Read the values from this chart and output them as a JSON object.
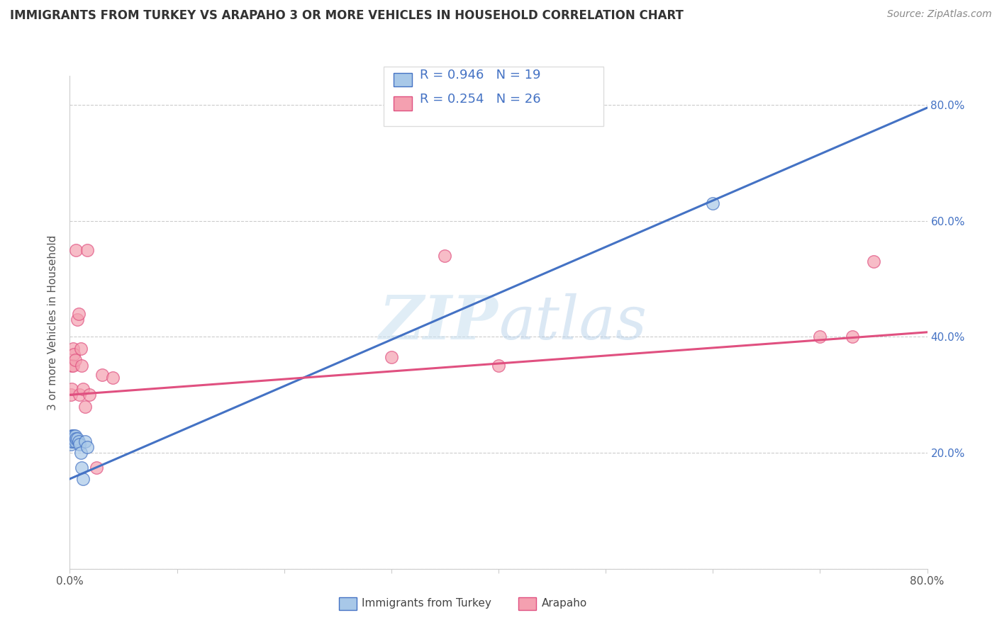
{
  "title": "IMMIGRANTS FROM TURKEY VS ARAPAHO 3 OR MORE VEHICLES IN HOUSEHOLD CORRELATION CHART",
  "source": "Source: ZipAtlas.com",
  "ylabel": "3 or more Vehicles in Household",
  "xlim": [
    0.0,
    0.8
  ],
  "ylim": [
    0.0,
    0.85
  ],
  "xticks": [
    0.0,
    0.1,
    0.2,
    0.3,
    0.4,
    0.5,
    0.6,
    0.7,
    0.8
  ],
  "xticklabels": [
    "0.0%",
    "",
    "",
    "",
    "",
    "",
    "",
    "",
    "80.0%"
  ],
  "yticks": [
    0.0,
    0.2,
    0.4,
    0.6,
    0.8
  ],
  "yticklabels_right": [
    "",
    "20.0%",
    "40.0%",
    "60.0%",
    "80.0%"
  ],
  "legend_label1": "Immigrants from Turkey",
  "legend_label2": "Arapaho",
  "R1": 0.946,
  "N1": 19,
  "R2": 0.254,
  "N2": 26,
  "color_blue": "#a8c8e8",
  "color_pink": "#f4a0b0",
  "color_blue_line": "#4472c4",
  "color_pink_line": "#e05080",
  "watermark_zip": "ZIP",
  "watermark_atlas": "atlas",
  "blue_scatter_x": [
    0.001,
    0.002,
    0.002,
    0.003,
    0.003,
    0.004,
    0.004,
    0.005,
    0.005,
    0.006,
    0.007,
    0.008,
    0.009,
    0.01,
    0.011,
    0.012,
    0.014,
    0.016,
    0.6
  ],
  "blue_scatter_y": [
    0.215,
    0.22,
    0.23,
    0.22,
    0.23,
    0.225,
    0.23,
    0.22,
    0.23,
    0.225,
    0.225,
    0.22,
    0.215,
    0.2,
    0.175,
    0.155,
    0.22,
    0.21,
    0.63
  ],
  "pink_scatter_x": [
    0.001,
    0.002,
    0.002,
    0.003,
    0.003,
    0.004,
    0.005,
    0.006,
    0.007,
    0.008,
    0.009,
    0.01,
    0.011,
    0.012,
    0.014,
    0.016,
    0.018,
    0.025,
    0.03,
    0.04,
    0.3,
    0.35,
    0.4,
    0.7,
    0.73,
    0.75
  ],
  "pink_scatter_y": [
    0.3,
    0.31,
    0.35,
    0.35,
    0.38,
    0.37,
    0.36,
    0.55,
    0.43,
    0.44,
    0.3,
    0.38,
    0.35,
    0.31,
    0.28,
    0.55,
    0.3,
    0.175,
    0.335,
    0.33,
    0.365,
    0.54,
    0.35,
    0.4,
    0.4,
    0.53
  ],
  "blue_line_x": [
    0.0,
    0.8
  ],
  "blue_line_y": [
    0.155,
    0.795
  ],
  "pink_line_x": [
    0.0,
    0.8
  ],
  "pink_line_y": [
    0.3,
    0.408
  ]
}
